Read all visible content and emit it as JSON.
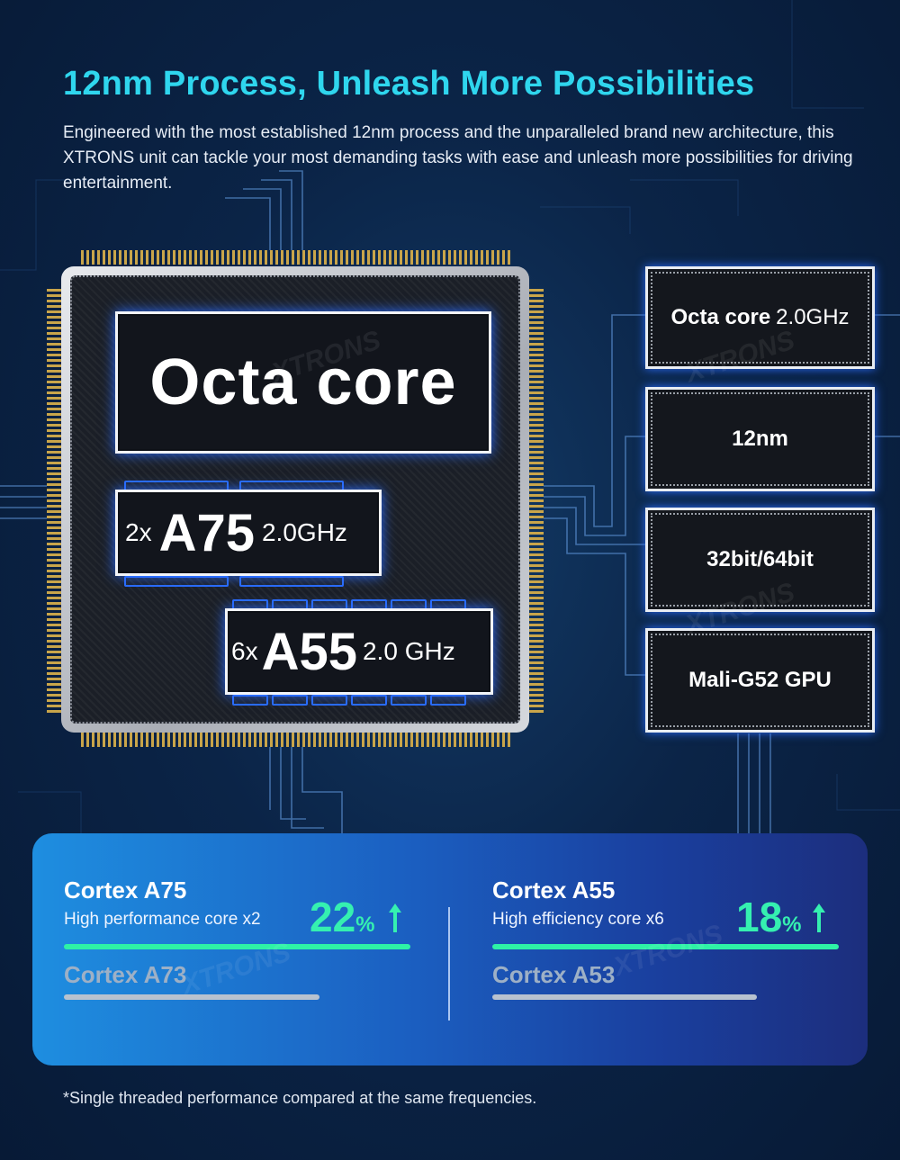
{
  "header": {
    "title": "12nm Process, Unleash More Possibilities",
    "intro": "Engineered with the most established 12nm process and the unparalleled brand new architecture, this XTRONS unit can tackle your most demanding tasks with ease and unleash more possibilities for driving entertainment."
  },
  "chip": {
    "main_label": "Octa core",
    "a75": {
      "count": "2x",
      "model": "A75",
      "freq": "2.0GHz"
    },
    "a55": {
      "count": "6x",
      "model": "A55",
      "freq": "2.0 GHz"
    }
  },
  "specs": {
    "cores_bold": "Octa core",
    "cores_thin": "2.0GHz",
    "process": "12nm",
    "bits": "32bit/64bit",
    "gpu": "Mali-G52 GPU"
  },
  "comparison": {
    "left": {
      "name": "Cortex A75",
      "desc": "High performance core x2",
      "pct": "22",
      "unit": "%",
      "improvement_percent": 22,
      "old": "Cortex A73"
    },
    "right": {
      "name": "Cortex A55",
      "desc": "High efficiency core x6",
      "pct": "18",
      "unit": "%",
      "improvement_percent": 18,
      "old": "Cortex A53"
    }
  },
  "footnote": "*Single threaded performance compared at the same frequencies.",
  "colors": {
    "accent": "#2fd6ee",
    "green": "#2ef2a6",
    "glow": "#2a6cff"
  }
}
